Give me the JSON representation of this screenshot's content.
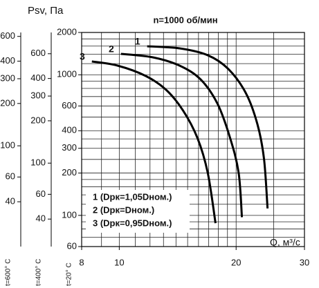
{
  "chart_data": {
    "type": "line",
    "title": "n=1000 об/мин",
    "y_label": "Psv, Па",
    "x_label": "Q, м³/с",
    "xscale": "log",
    "yscale": "log",
    "xlim": [
      8,
      30
    ],
    "xticks": [
      8,
      10,
      20,
      30
    ],
    "xgrid": [
      9,
      10,
      11,
      12,
      13,
      14,
      15,
      16,
      17,
      18,
      19,
      20,
      25,
      30
    ],
    "ylim": [
      60,
      2000
    ],
    "yticks": [
      2000,
      1000,
      600,
      400,
      300,
      200,
      100,
      60
    ],
    "ygrid": [
      2000,
      1800,
      1600,
      1400,
      1200,
      1000,
      900,
      800,
      700,
      600,
      500,
      400,
      350,
      300,
      250,
      200,
      180,
      160,
      140,
      120,
      100,
      90,
      80,
      70,
      60
    ],
    "y_axis_label": "t=20° C",
    "extra_axes": [
      {
        "label": "t=400° C",
        "ylim": [
          25.5,
          850
        ],
        "yticks": [
          600,
          400,
          300,
          200,
          100,
          60,
          40
        ]
      },
      {
        "label": "t=600° C",
        "ylim": [
          19.2,
          640
        ],
        "yticks": [
          600,
          400,
          300,
          200,
          100,
          60,
          40
        ]
      }
    ],
    "legend": "lower left",
    "series": [
      {
        "name": "1 (Dрк=1,05Dном.)",
        "label": "1",
        "color": "#000000",
        "x": [
          11.8,
          14.3,
          16.9,
          19.1,
          21.2,
          22.7,
          23.6,
          24.1
        ],
        "values": [
          1596,
          1542,
          1378,
          1099,
          739,
          444,
          252,
          112
        ]
      },
      {
        "name": "2 (Dрк=Dном.)",
        "label": "2",
        "color": "#000000",
        "x": [
          10.1,
          12.2,
          14.3,
          16.2,
          17.9,
          19.3,
          20.3,
          20.7
        ],
        "values": [
          1409,
          1331,
          1162,
          927,
          624,
          355,
          201,
          97
        ]
      },
      {
        "name": "3 (Dрк=0,95Dном.)",
        "label": "3",
        "color": "#000000",
        "x": [
          8.5,
          9.9,
          11.7,
          13.2,
          14.6,
          15.9,
          16.9,
          17.7
        ],
        "values": [
          1244,
          1162,
          981,
          782,
          557,
          355,
          201,
          88
        ]
      }
    ]
  }
}
